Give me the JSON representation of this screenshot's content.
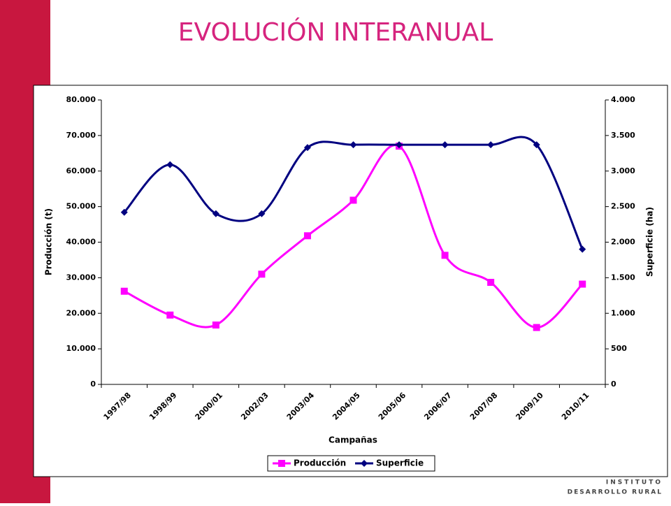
{
  "chart_data": {
    "type": "line",
    "title": "EVOLUCIÓN INTERANUAL",
    "x_label": "Campañas",
    "y_label": "Producción (t)",
    "y2_label": "Superficie (ha)",
    "categories": [
      "1997/98",
      "1998/99",
      "2000/01",
      "2002/03",
      "2003/04",
      "2004/05",
      "2005/06",
      "2006/07",
      "2007/08",
      "2009/10",
      "2010/11"
    ],
    "series": [
      {
        "name": "Producción",
        "color": "#ff00ff",
        "marker": "square",
        "values": [
          26200,
          19500,
          16700,
          31000,
          41800,
          51800,
          67000,
          36300,
          28700,
          16000,
          28200
        ]
      },
      {
        "name": "Superficie",
        "color": "#000080",
        "marker": "diamond",
        "axis": "y2",
        "values": [
          2420,
          3090,
          2400,
          2400,
          3330,
          3370,
          3370,
          3370,
          3370,
          3370,
          1900
        ]
      }
    ],
    "ylim": [
      0,
      80000
    ],
    "yticks": [
      0,
      {
        "value": 10000,
        "label": "10.000"
      },
      {
        "value": 20000,
        "label": "20.000"
      },
      {
        "value": 30000,
        "label": "30.000"
      },
      {
        "value": 40000,
        "label": "40.000"
      },
      {
        "value": 50000,
        "label": "50.000"
      },
      {
        "value": 60000,
        "label": "60.000"
      },
      {
        "value": 70000,
        "label": "70.000"
      },
      {
        "value": 80000,
        "label": "80.000"
      }
    ],
    "y2lim": [
      0,
      4000
    ],
    "y2ticks": [
      0,
      500,
      {
        "value": 1000,
        "label": "1.000"
      },
      {
        "value": 1500,
        "label": "1.500"
      },
      {
        "value": 2000,
        "label": "2.000"
      },
      {
        "value": 2500,
        "label": "2.500"
      },
      {
        "value": 3000,
        "label": "3.000"
      },
      {
        "value": 3500,
        "label": "3.500"
      },
      {
        "value": 4000,
        "label": "4.000"
      }
    ],
    "smooth": true,
    "legend": "bottom"
  },
  "logo_text": [
    "INSTITUTO",
    "DESARROLLO RURAL"
  ]
}
